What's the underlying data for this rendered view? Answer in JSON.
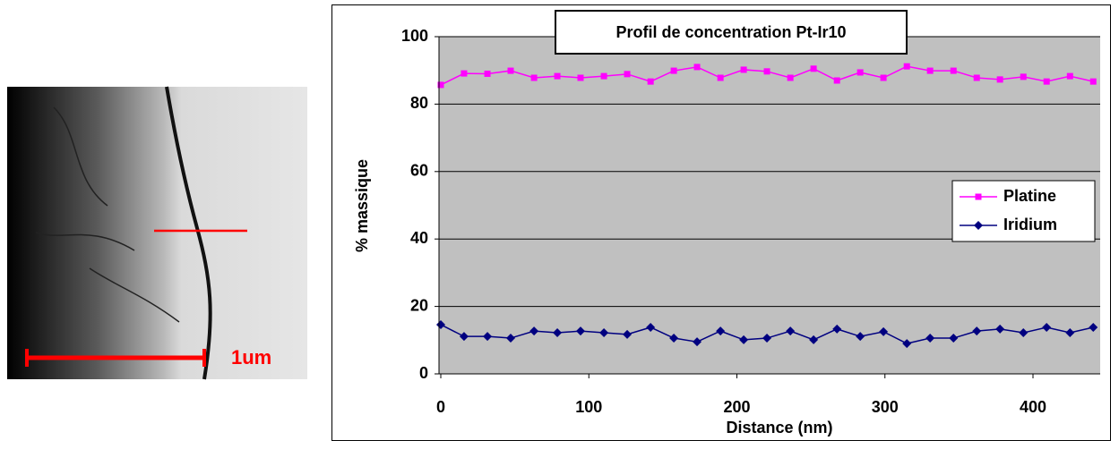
{
  "image": {
    "scale_label": "1um"
  },
  "chart_data": {
    "type": "line",
    "title": "Profil de concentration Pt-Ir10",
    "x_label": "Distance (nm)",
    "y_label": "% massique",
    "x": [
      0,
      15.7,
      31.5,
      47.2,
      63,
      78.7,
      94.4,
      110.2,
      125.9,
      141.7,
      157.4,
      173.1,
      188.9,
      204.6,
      220.3,
      236.1,
      251.8,
      267.6,
      283.3,
      299,
      314.8,
      330.5,
      346.3,
      362,
      377.7,
      393.5,
      409.2,
      425,
      440.7
    ],
    "series": [
      {
        "name": "Platine",
        "color": "#ff00ff",
        "marker": "square",
        "values": [
          85.7,
          89.1,
          89,
          89.9,
          87.8,
          88.3,
          87.8,
          88.3,
          88.9,
          86.7,
          89.9,
          91,
          87.8,
          90.2,
          89.7,
          87.8,
          90.5,
          87,
          89.4,
          87.8,
          91.2,
          89.9,
          89.9,
          87.8,
          87.3,
          88.1,
          86.7,
          88.3,
          86.7
        ]
      },
      {
        "name": "Iridium",
        "color": "#000080",
        "marker": "diamond",
        "values": [
          14.6,
          11.1,
          11.1,
          10.6,
          12.7,
          12.2,
          12.7,
          12.2,
          11.7,
          13.8,
          10.6,
          9.5,
          12.7,
          10.1,
          10.6,
          12.7,
          10.1,
          13.3,
          11.1,
          12.5,
          9,
          10.6,
          10.6,
          12.7,
          13.3,
          12.2,
          13.8,
          12.2,
          13.8
        ]
      }
    ],
    "xlim": [
      0,
      445
    ],
    "xticks": [
      0,
      100,
      200,
      300,
      400
    ],
    "ylim": [
      0,
      100
    ],
    "yticks": [
      0,
      20,
      40,
      60,
      80,
      100
    ],
    "grid": true,
    "legend": "right"
  }
}
